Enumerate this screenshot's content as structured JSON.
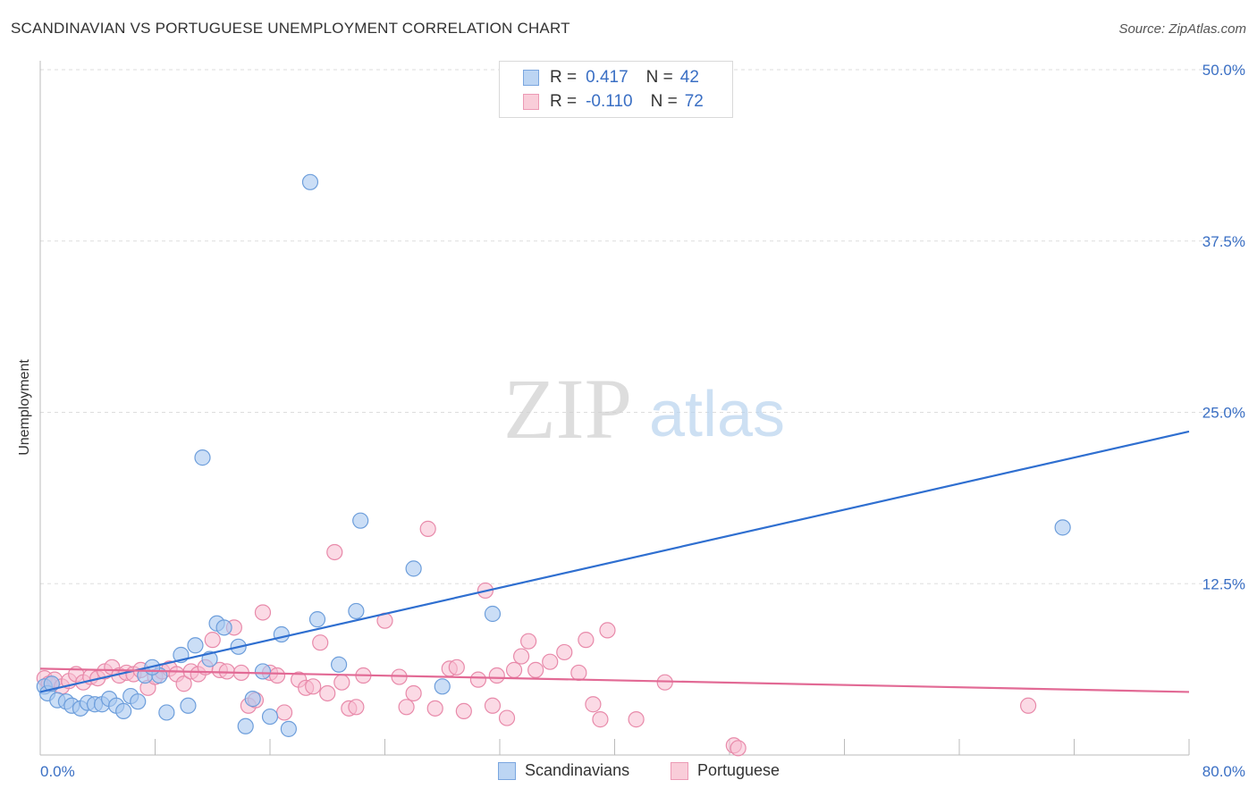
{
  "title": "SCANDINAVIAN VS PORTUGUESE UNEMPLOYMENT CORRELATION CHART",
  "source": "Source: ZipAtlas.com",
  "watermark": {
    "zip": "ZIP",
    "atlas": "atlas"
  },
  "legend_top": [
    {
      "r_label": "R =",
      "r_value": "0.417",
      "n_label": "N =",
      "n_value": "42"
    },
    {
      "r_label": "R =",
      "r_value": "-0.110",
      "n_label": "N =",
      "n_value": "72"
    }
  ],
  "colors": {
    "blue_fill": "#a9c8f0",
    "blue_stroke": "#6d9edb",
    "blue_line": "#2f6fd0",
    "pink_fill": "#f7bcd0",
    "pink_stroke": "#e88aaa",
    "pink_line": "#e26a95",
    "tick_label": "#3a6fc4",
    "grid": "#dddddd"
  },
  "chart_data": {
    "type": "scatter",
    "title": "SCANDINAVIAN VS PORTUGUESE UNEMPLOYMENT CORRELATION CHART",
    "xlabel": "",
    "ylabel": "Unemployment",
    "xlim": [
      0,
      80
    ],
    "ylim": [
      0,
      50
    ],
    "x_tick_labels": [
      "0.0%",
      "80.0%"
    ],
    "y_ticks": [
      12.5,
      25.0,
      37.5,
      50.0
    ],
    "y_tick_labels": [
      "12.5%",
      "25.0%",
      "37.5%",
      "50.0%"
    ],
    "grid": true,
    "legend_placement": "bottom",
    "series": [
      {
        "name": "Scandinavians",
        "color": "#a9c8f0",
        "r": 0.417,
        "n": 42,
        "trend": {
          "x": [
            0,
            80
          ],
          "y": [
            4.6,
            23.6
          ]
        },
        "points": [
          [
            0.3,
            5.0
          ],
          [
            0.5,
            4.5
          ],
          [
            0.8,
            5.2
          ],
          [
            1.2,
            4.0
          ],
          [
            1.8,
            3.9
          ],
          [
            2.2,
            3.6
          ],
          [
            2.8,
            3.4
          ],
          [
            3.3,
            3.8
          ],
          [
            3.8,
            3.7
          ],
          [
            4.3,
            3.7
          ],
          [
            4.8,
            4.1
          ],
          [
            5.3,
            3.6
          ],
          [
            5.8,
            3.2
          ],
          [
            6.3,
            4.3
          ],
          [
            6.8,
            3.9
          ],
          [
            7.3,
            5.8
          ],
          [
            8.3,
            5.8
          ],
          [
            8.8,
            3.1
          ],
          [
            7.8,
            6.4
          ],
          [
            9.8,
            7.3
          ],
          [
            10.3,
            3.6
          ],
          [
            10.8,
            8.0
          ],
          [
            11.3,
            21.7
          ],
          [
            11.8,
            7.0
          ],
          [
            12.3,
            9.6
          ],
          [
            12.8,
            9.3
          ],
          [
            13.8,
            7.9
          ],
          [
            14.3,
            2.1
          ],
          [
            14.8,
            4.1
          ],
          [
            15.5,
            6.1
          ],
          [
            16.0,
            2.8
          ],
          [
            16.8,
            8.8
          ],
          [
            17.3,
            1.9
          ],
          [
            18.8,
            41.8
          ],
          [
            19.3,
            9.9
          ],
          [
            20.8,
            6.6
          ],
          [
            22.0,
            10.5
          ],
          [
            22.3,
            17.1
          ],
          [
            26.0,
            13.6
          ],
          [
            28.0,
            5.0
          ],
          [
            31.5,
            10.3
          ],
          [
            71.2,
            16.6
          ]
        ]
      },
      {
        "name": "Portuguese",
        "color": "#f7bcd0",
        "r": -0.11,
        "n": 72,
        "trend": {
          "x": [
            0,
            80
          ],
          "y": [
            6.3,
            4.6
          ]
        },
        "points": [
          [
            0.3,
            5.6
          ],
          [
            0.6,
            5.2
          ],
          [
            1.0,
            5.5
          ],
          [
            1.5,
            5.0
          ],
          [
            2.0,
            5.4
          ],
          [
            2.5,
            5.9
          ],
          [
            3.0,
            5.3
          ],
          [
            3.5,
            5.7
          ],
          [
            4.0,
            5.6
          ],
          [
            4.5,
            6.1
          ],
          [
            5.0,
            6.4
          ],
          [
            5.5,
            5.8
          ],
          [
            6.0,
            6.0
          ],
          [
            6.5,
            5.9
          ],
          [
            7.0,
            6.2
          ],
          [
            7.5,
            4.9
          ],
          [
            8.0,
            5.7
          ],
          [
            8.5,
            6.1
          ],
          [
            9.0,
            6.3
          ],
          [
            9.5,
            5.9
          ],
          [
            10.0,
            5.2
          ],
          [
            10.5,
            6.1
          ],
          [
            11.0,
            5.9
          ],
          [
            11.5,
            6.4
          ],
          [
            12.0,
            8.4
          ],
          [
            12.5,
            6.2
          ],
          [
            13.0,
            6.1
          ],
          [
            13.5,
            9.3
          ],
          [
            14.0,
            6.0
          ],
          [
            14.5,
            3.6
          ],
          [
            15.0,
            4.0
          ],
          [
            15.5,
            10.4
          ],
          [
            16.0,
            6.0
          ],
          [
            16.5,
            5.8
          ],
          [
            17.0,
            3.1
          ],
          [
            18.0,
            5.5
          ],
          [
            18.5,
            4.9
          ],
          [
            19.0,
            5.0
          ],
          [
            19.5,
            8.2
          ],
          [
            20.0,
            4.5
          ],
          [
            20.5,
            14.8
          ],
          [
            21.0,
            5.3
          ],
          [
            21.5,
            3.4
          ],
          [
            22.0,
            3.5
          ],
          [
            22.5,
            5.8
          ],
          [
            24.0,
            9.8
          ],
          [
            25.0,
            5.7
          ],
          [
            25.5,
            3.5
          ],
          [
            26.0,
            4.5
          ],
          [
            27.0,
            16.5
          ],
          [
            27.5,
            3.4
          ],
          [
            28.5,
            6.3
          ],
          [
            29.0,
            6.4
          ],
          [
            29.5,
            3.2
          ],
          [
            30.5,
            5.5
          ],
          [
            31.0,
            12.0
          ],
          [
            31.5,
            3.6
          ],
          [
            31.8,
            5.8
          ],
          [
            32.5,
            2.7
          ],
          [
            33.0,
            6.2
          ],
          [
            33.5,
            7.2
          ],
          [
            34.0,
            8.3
          ],
          [
            34.5,
            6.2
          ],
          [
            35.5,
            6.8
          ],
          [
            36.5,
            7.5
          ],
          [
            37.5,
            6.0
          ],
          [
            38.0,
            8.4
          ],
          [
            38.5,
            3.7
          ],
          [
            39.0,
            2.6
          ],
          [
            39.5,
            9.1
          ],
          [
            41.5,
            2.6
          ],
          [
            43.5,
            5.3
          ]
        ]
      }
    ],
    "extra_points_pink": [
      [
        48.3,
        0.7
      ],
      [
        48.6,
        0.5
      ],
      [
        68.8,
        3.6
      ]
    ]
  },
  "legend_bottom": [
    "Scandinavians",
    "Portuguese"
  ]
}
